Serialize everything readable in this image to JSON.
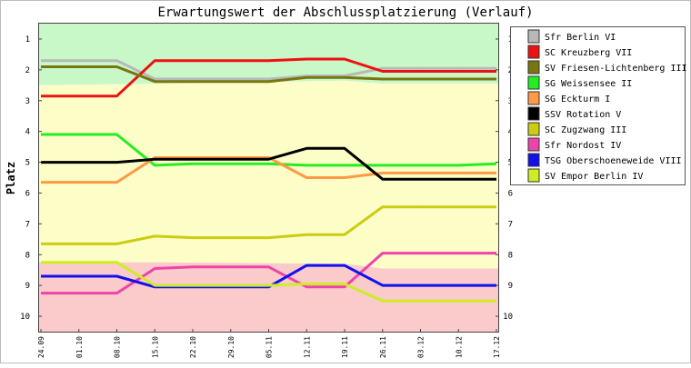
{
  "chart_data": {
    "type": "line",
    "title": "Erwartungswert der Abschlussplatzierung (Verlauf)",
    "ylabel": "Platz",
    "xlabel": "",
    "x": [
      "24.09",
      "01.10",
      "08.10",
      "15.10",
      "22.10",
      "29.10",
      "05.11",
      "12.11",
      "19.11",
      "26.11",
      "03.12",
      "10.12",
      "17.12"
    ],
    "ylim": [
      0.5,
      10.5
    ],
    "y_inverted": true,
    "y_ticks": [
      1,
      2,
      3,
      4,
      5,
      6,
      7,
      8,
      9,
      10
    ],
    "grid": false,
    "legend_position": "right",
    "background_bands": [
      {
        "label": "",
        "color": "#c8f7c8"
      },
      {
        "label": "",
        "color": "#fdfdc8"
      },
      {
        "label": "",
        "color": "#fbcaca"
      }
    ],
    "series": [
      {
        "name": "Sfr Berlin VI",
        "color": "#b8b8b8",
        "values": [
          1.7,
          1.7,
          1.7,
          2.3,
          2.3,
          2.3,
          2.3,
          2.2,
          2.2,
          1.95,
          1.95,
          1.95,
          1.95
        ]
      },
      {
        "name": "SC Kreuzberg VII",
        "color": "#ee1111",
        "values": [
          2.85,
          2.85,
          2.85,
          1.7,
          1.7,
          1.7,
          1.7,
          1.65,
          1.65,
          2.05,
          2.05,
          2.05,
          2.05
        ]
      },
      {
        "name": "SV Friesen-Lichtenberg III",
        "color": "#777711",
        "values": [
          1.9,
          1.9,
          1.9,
          2.38,
          2.38,
          2.38,
          2.38,
          2.25,
          2.25,
          2.3,
          2.3,
          2.3,
          2.3
        ]
      },
      {
        "name": "SG Weissensee II",
        "color": "#22ee22",
        "values": [
          4.1,
          4.1,
          4.1,
          5.1,
          5.05,
          5.05,
          5.05,
          5.1,
          5.1,
          5.1,
          5.1,
          5.1,
          5.05
        ]
      },
      {
        "name": "SG Eckturm I",
        "color": "#ff9944",
        "values": [
          5.65,
          5.65,
          5.65,
          4.85,
          4.85,
          4.85,
          4.85,
          5.5,
          5.5,
          5.35,
          5.35,
          5.35,
          5.35
        ]
      },
      {
        "name": "SSV Rotation V",
        "color": "#000000",
        "values": [
          5.0,
          5.0,
          5.0,
          4.9,
          4.9,
          4.9,
          4.9,
          4.55,
          4.55,
          5.55,
          5.55,
          5.55,
          5.55
        ]
      },
      {
        "name": "SC Zugzwang III",
        "color": "#cccc11",
        "values": [
          7.65,
          7.65,
          7.65,
          7.4,
          7.45,
          7.45,
          7.45,
          7.35,
          7.35,
          6.45,
          6.45,
          6.45,
          6.45
        ]
      },
      {
        "name": "Sfr Nordost IV",
        "color": "#ee44aa",
        "values": [
          9.25,
          9.25,
          9.25,
          8.45,
          8.4,
          8.4,
          8.4,
          9.05,
          9.05,
          7.95,
          7.95,
          7.95,
          7.95
        ]
      },
      {
        "name": "TSG Oberschoeneweide VIII",
        "color": "#1111ee",
        "values": [
          8.7,
          8.7,
          8.7,
          9.05,
          9.05,
          9.05,
          9.05,
          8.35,
          8.35,
          9.0,
          9.0,
          9.0,
          9.0
        ]
      },
      {
        "name": "SV Empor Berlin IV",
        "color": "#ccee22",
        "values": [
          8.25,
          8.25,
          8.25,
          9.0,
          9.0,
          9.0,
          9.0,
          8.95,
          8.95,
          9.5,
          9.5,
          9.5,
          9.5
        ]
      }
    ]
  }
}
